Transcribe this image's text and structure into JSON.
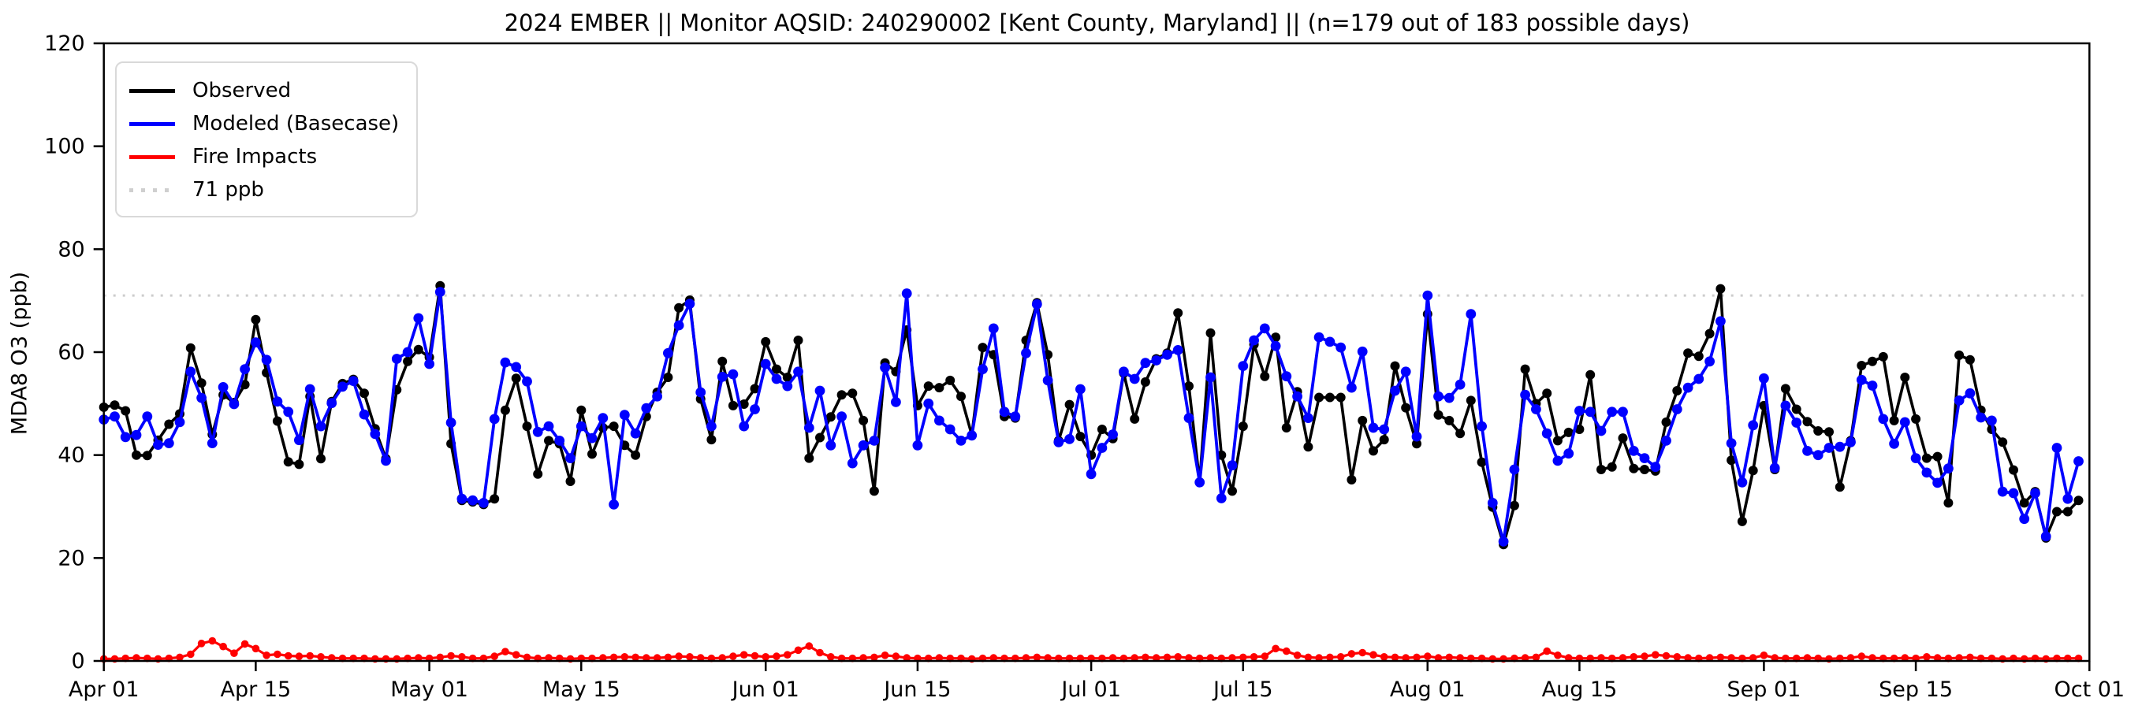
{
  "figure": {
    "title": "2024 EMBER || Monitor AQSID: 240290002 [Kent County, Maryland] || (n=179 out of 183 possible days)",
    "background": "#ffffff"
  },
  "chart_data": {
    "type": "line",
    "title": "2024 EMBER || Monitor AQSID: 240290002 [Kent County, Maryland] || (n=179 out of 183 possible days)",
    "xlabel": "",
    "ylabel": "MDA8 O3 (ppb)",
    "ylim": [
      0,
      120
    ],
    "x_range_days": 183,
    "grid": "off",
    "y_ticks": [
      0,
      20,
      40,
      60,
      80,
      100,
      120
    ],
    "x_ticks": [
      {
        "day": 0,
        "label": "Apr 01"
      },
      {
        "day": 14,
        "label": "Apr 15"
      },
      {
        "day": 30,
        "label": "May 01"
      },
      {
        "day": 44,
        "label": "May 15"
      },
      {
        "day": 61,
        "label": "Jun 01"
      },
      {
        "day": 75,
        "label": "Jun 15"
      },
      {
        "day": 91,
        "label": "Jul 01"
      },
      {
        "day": 105,
        "label": "Jul 15"
      },
      {
        "day": 122,
        "label": "Aug 01"
      },
      {
        "day": 136,
        "label": "Aug 15"
      },
      {
        "day": 153,
        "label": "Sep 01"
      },
      {
        "day": 167,
        "label": "Sep 15"
      },
      {
        "day": 183,
        "label": "Oct 01"
      }
    ],
    "reference_line": {
      "value": 71,
      "label": "71 ppb",
      "color": "#cccccc",
      "style": "dotted"
    },
    "legend": {
      "position": "upper-left",
      "entries": [
        {
          "label": "Observed",
          "color": "#000000",
          "style": "solid"
        },
        {
          "label": "Modeled (Basecase)",
          "color": "#0000ff",
          "style": "solid"
        },
        {
          "label": "Fire Impacts",
          "color": "#ff0000",
          "style": "solid"
        },
        {
          "label": "71 ppb",
          "color": "#cccccc",
          "style": "dotted"
        }
      ]
    },
    "series": [
      {
        "name": "Observed",
        "color": "#000000",
        "line_width": 3.6,
        "marker_radius": 6,
        "values": [
          49.3,
          49.7,
          48.6,
          40.0,
          39.9,
          42.9,
          46.0,
          48.0,
          60.8,
          54.0,
          44.0,
          51.7,
          50.2,
          53.7,
          66.3,
          56.0,
          46.6,
          38.7,
          38.2,
          51.4,
          39.3,
          50.4,
          53.9,
          54.7,
          52.0,
          45.1,
          39.3,
          52.7,
          58.2,
          60.5,
          59.0,
          72.9,
          42.2,
          31.2,
          30.9,
          30.4,
          31.5,
          48.7,
          54.9,
          45.6,
          36.3,
          42.8,
          42.2,
          34.9,
          48.7,
          40.2,
          45.3,
          45.6,
          41.9,
          40.0,
          47.5,
          52.2,
          55.1,
          68.6,
          70.1,
          50.9,
          43.0,
          58.2,
          49.6,
          49.9,
          52.9,
          62.0,
          56.7,
          55.1,
          62.3,
          39.4,
          43.4,
          47.4,
          51.7,
          52.0,
          46.7,
          33.0,
          57.9,
          56.2,
          64.3,
          49.6,
          53.4,
          53.1,
          54.5,
          51.4,
          43.9,
          60.9,
          59.5,
          47.5,
          47.2,
          62.3,
          69.6,
          59.5,
          42.8,
          49.8,
          43.6,
          40.0,
          45.0,
          43.2,
          55.9,
          47.0,
          54.2,
          58.7,
          59.8,
          67.6,
          53.4,
          34.7,
          63.7,
          40.0,
          33.0,
          45.6,
          61.5,
          55.3,
          62.9,
          45.3,
          52.3,
          41.6,
          51.2,
          51.2,
          51.2,
          35.2,
          46.7,
          40.8,
          43.0,
          57.3,
          49.2,
          42.2,
          67.4,
          47.8,
          46.7,
          44.2,
          50.6,
          38.6,
          29.9,
          22.6,
          30.2,
          56.7,
          50.0,
          52.0,
          42.8,
          44.4,
          45.0,
          55.6,
          37.2,
          37.7,
          43.3,
          37.4,
          37.2,
          36.9,
          46.4,
          52.5,
          59.8,
          59.2,
          63.6,
          72.3,
          39.0,
          27.1,
          37.0,
          49.6,
          37.2,
          52.9,
          48.9,
          46.5,
          44.7,
          44.5,
          33.8,
          42.8,
          57.4,
          58.2,
          59.1,
          46.7,
          55.1,
          47.0,
          39.4,
          39.7,
          30.7,
          59.4,
          58.5,
          48.7,
          45.0,
          42.5,
          37.1,
          30.7,
          32.9,
          23.9,
          29.0,
          29.0,
          31.2
        ]
      },
      {
        "name": "Modeled (Basecase)",
        "color": "#0000ff",
        "line_width": 3.8,
        "marker_radius": 6.4,
        "values": [
          46.9,
          47.5,
          43.5,
          43.9,
          47.5,
          42.0,
          42.3,
          46.4,
          56.2,
          51.1,
          42.3,
          53.2,
          49.9,
          56.7,
          61.9,
          58.5,
          50.4,
          48.4,
          42.9,
          52.8,
          45.6,
          50.1,
          53.3,
          54.4,
          47.9,
          44.1,
          38.9,
          58.7,
          60.0,
          66.6,
          57.7,
          71.7,
          46.3,
          31.5,
          31.2,
          30.7,
          47.0,
          58.0,
          57.1,
          54.3,
          44.5,
          45.6,
          42.8,
          39.4,
          45.6,
          43.3,
          47.2,
          30.4,
          47.8,
          44.2,
          49.1,
          51.4,
          59.8,
          65.2,
          69.4,
          52.2,
          45.6,
          55.2,
          55.7,
          45.6,
          48.9,
          57.7,
          54.8,
          53.4,
          56.2,
          45.3,
          52.5,
          41.9,
          47.5,
          38.4,
          41.9,
          42.8,
          57.0,
          50.3,
          71.4,
          41.9,
          50.0,
          46.7,
          45.0,
          42.8,
          43.8,
          56.7,
          64.6,
          48.4,
          47.5,
          59.8,
          69.3,
          54.5,
          42.5,
          43.1,
          52.8,
          36.3,
          41.4,
          44.0,
          56.2,
          54.8,
          57.9,
          58.4,
          59.5,
          60.4,
          47.2,
          34.7,
          55.1,
          31.6,
          38.0,
          57.3,
          62.3,
          64.6,
          61.2,
          55.3,
          51.4,
          47.2,
          62.9,
          62.0,
          60.9,
          53.1,
          60.1,
          45.3,
          45.0,
          52.5,
          56.2,
          43.6,
          71.0,
          51.4,
          51.1,
          53.7,
          67.4,
          45.6,
          30.7,
          23.2,
          37.2,
          51.7,
          48.9,
          44.2,
          38.9,
          40.3,
          48.6,
          48.4,
          44.7,
          48.4,
          48.4,
          40.8,
          39.4,
          37.7,
          42.8,
          48.9,
          53.1,
          54.8,
          58.2,
          66.0,
          42.3,
          34.7,
          45.8,
          54.9,
          37.5,
          49.6,
          46.3,
          40.8,
          40.0,
          41.4,
          41.6,
          42.5,
          54.6,
          53.5,
          47.0,
          42.2,
          46.4,
          39.4,
          36.6,
          34.6,
          37.4,
          50.6,
          52.0,
          47.3,
          46.7,
          32.9,
          32.6,
          27.6,
          32.6,
          24.2,
          41.4,
          31.5,
          38.8
        ]
      },
      {
        "name": "Fire Impacts",
        "color": "#ff0000",
        "line_width": 3.2,
        "marker_radius": 4.8,
        "values": [
          0.4,
          0.4,
          0.5,
          0.6,
          0.5,
          0.4,
          0.5,
          0.7,
          1.3,
          3.4,
          3.9,
          2.8,
          1.5,
          3.3,
          2.4,
          1.1,
          1.3,
          1.0,
          0.9,
          1.0,
          0.8,
          0.6,
          0.5,
          0.5,
          0.5,
          0.4,
          0.4,
          0.4,
          0.5,
          0.6,
          0.5,
          0.7,
          1.0,
          0.8,
          0.5,
          0.5,
          0.9,
          1.8,
          1.2,
          0.7,
          0.5,
          0.6,
          0.5,
          0.4,
          0.5,
          0.5,
          0.6,
          0.7,
          0.8,
          0.7,
          0.6,
          0.6,
          0.7,
          0.9,
          0.8,
          0.6,
          0.5,
          0.6,
          0.9,
          1.2,
          1.0,
          0.8,
          0.9,
          1.2,
          2.1,
          2.9,
          1.6,
          0.8,
          0.5,
          0.5,
          0.6,
          0.7,
          1.1,
          0.9,
          0.6,
          0.5,
          0.5,
          0.6,
          0.5,
          0.5,
          0.4,
          0.5,
          0.6,
          0.5,
          0.5,
          0.6,
          0.7,
          0.6,
          0.5,
          0.5,
          0.5,
          0.5,
          0.5,
          0.6,
          0.5,
          0.6,
          0.7,
          0.6,
          0.7,
          0.8,
          0.6,
          0.5,
          0.6,
          0.5,
          0.6,
          0.7,
          0.8,
          0.9,
          2.4,
          1.9,
          1.1,
          0.7,
          0.6,
          0.7,
          0.8,
          1.4,
          1.6,
          1.2,
          0.8,
          0.7,
          0.6,
          0.7,
          0.9,
          0.6,
          0.7,
          0.6,
          0.5,
          0.5,
          0.4,
          0.4,
          0.5,
          0.6,
          0.7,
          1.9,
          1.1,
          0.6,
          0.5,
          0.5,
          0.6,
          0.5,
          0.6,
          0.8,
          0.9,
          1.2,
          1.0,
          0.8,
          0.6,
          0.5,
          0.6,
          0.7,
          0.6,
          0.5,
          0.6,
          1.1,
          0.6,
          0.5,
          0.5,
          0.6,
          0.5,
          0.4,
          0.5,
          0.6,
          0.9,
          0.6,
          0.5,
          0.5,
          0.6,
          0.5,
          0.8,
          0.6,
          0.5,
          0.6,
          0.7,
          0.5,
          0.5,
          0.4,
          0.5,
          0.4,
          0.5,
          0.4,
          0.5,
          0.5,
          0.5
        ]
      }
    ]
  }
}
